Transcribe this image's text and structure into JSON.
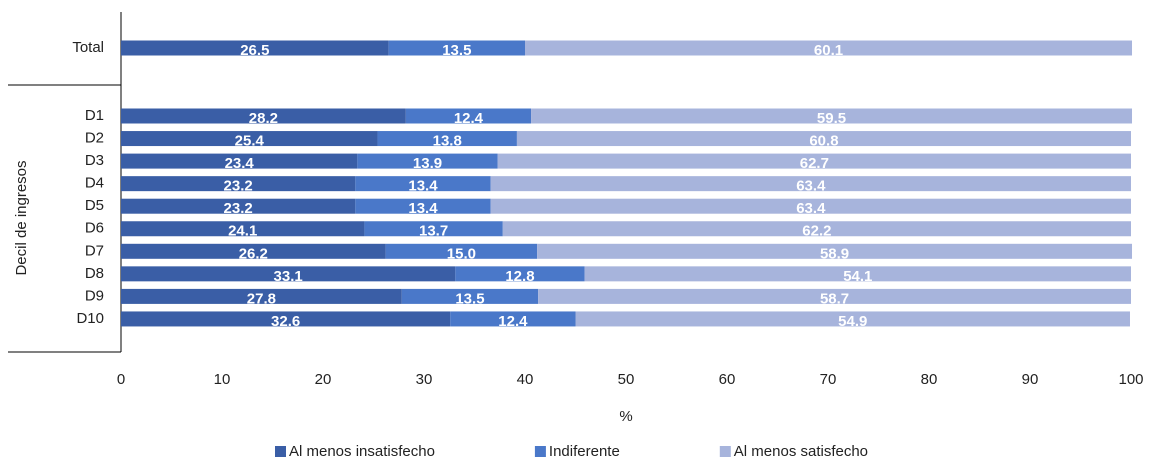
{
  "chart_data": {
    "type": "stacked-bar-horizontal",
    "ylabel": "Decil de ingresos",
    "xlabel": "%",
    "categories": [
      "Total",
      "D1",
      "D2",
      "D3",
      "D4",
      "D5",
      "D6",
      "D7",
      "D8",
      "D9",
      "D10"
    ],
    "series": [
      {
        "name": "Al menos insatisfecho",
        "color": "#3a5ea6",
        "values": [
          26.5,
          28.2,
          25.4,
          23.4,
          23.2,
          23.2,
          24.1,
          26.2,
          33.1,
          27.8,
          32.6
        ]
      },
      {
        "name": "Indiferente",
        "color": "#4a78c9",
        "values": [
          13.5,
          12.4,
          13.8,
          13.9,
          13.4,
          13.4,
          13.7,
          15.0,
          12.8,
          13.5,
          12.4
        ],
        "value_labels": [
          "13.5",
          "12.4",
          "13.8",
          "13.9",
          "13.4",
          "13.4",
          "13.7",
          "15.0",
          "12.8",
          "13.5",
          "12.4"
        ]
      },
      {
        "name": "Al menos satisfecho",
        "color": "#a7b4dc",
        "values": [
          60.1,
          59.5,
          60.8,
          62.7,
          63.4,
          63.4,
          62.2,
          58.9,
          54.1,
          58.7,
          54.9
        ]
      }
    ],
    "xlim": [
      0,
      100
    ],
    "xticks": [
      0,
      10,
      20,
      30,
      40,
      50,
      60,
      70,
      80,
      90,
      100
    ],
    "legend": "bottom"
  }
}
